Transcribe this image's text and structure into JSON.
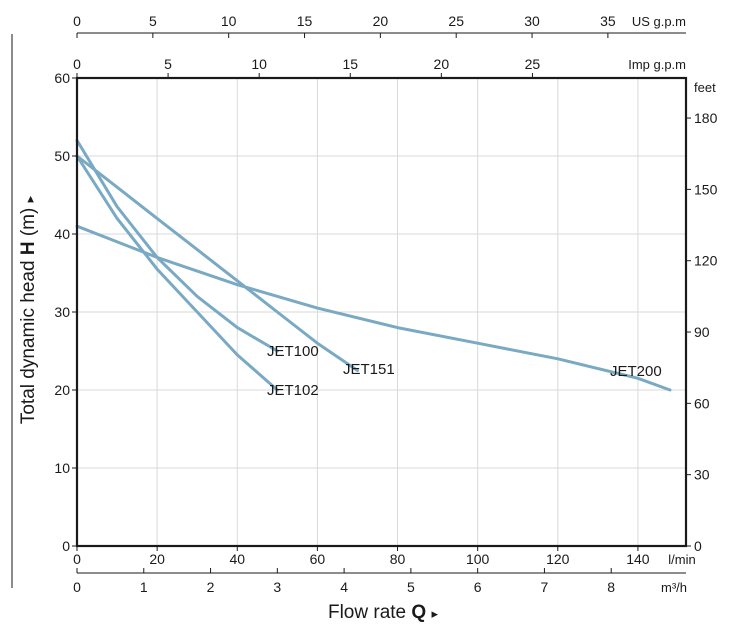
{
  "chart_data": {
    "type": "line",
    "ylabel": {
      "prefix": "Total dynamic head ",
      "bold": "H",
      "suffix": " (m) ",
      "arrow": "▸"
    },
    "xlabel": {
      "prefix": "Flow rate ",
      "bold": "Q",
      "suffix": " ",
      "arrow": "▸"
    },
    "axes": {
      "lmin": {
        "unit": "l/min",
        "range": [
          0,
          152
        ],
        "ticks": [
          0,
          20,
          40,
          60,
          80,
          100,
          120,
          140
        ]
      },
      "m3h": {
        "unit": "m³/h",
        "range": [
          0,
          9.12
        ],
        "ticks": [
          0,
          1,
          2,
          3,
          4,
          5,
          6,
          7,
          8
        ]
      },
      "usgpm": {
        "unit": "US g.p.m",
        "range": [
          0,
          40.15
        ],
        "ticks": [
          0,
          5,
          10,
          15,
          20,
          25,
          30,
          35
        ]
      },
      "impgpm": {
        "unit": "Imp g.p.m",
        "range": [
          0,
          33.43
        ],
        "ticks": [
          0,
          5,
          10,
          15,
          20,
          25
        ]
      },
      "head_m": {
        "unit": "m",
        "range": [
          0,
          60
        ],
        "ticks": [
          0,
          10,
          20,
          30,
          40,
          50,
          60
        ]
      },
      "head_ft": {
        "unit": "feet",
        "range": [
          0,
          196.85
        ],
        "ticks": [
          0,
          30,
          60,
          90,
          120,
          150,
          180
        ]
      }
    },
    "grid": true,
    "series": [
      {
        "name": "JET100",
        "x_lmin": [
          0,
          10,
          20,
          30,
          40,
          50
        ],
        "y_m": [
          52,
          43.5,
          37,
          32,
          28,
          25
        ]
      },
      {
        "name": "JET102",
        "x_lmin": [
          0,
          10,
          20,
          30,
          40,
          50
        ],
        "y_m": [
          50,
          42,
          35.5,
          30,
          24.5,
          20
        ]
      },
      {
        "name": "JET151",
        "x_lmin": [
          0,
          10,
          20,
          30,
          40,
          50,
          60,
          70
        ],
        "y_m": [
          50,
          46,
          42,
          38,
          34,
          30,
          26,
          22.5
        ]
      },
      {
        "name": "JET200",
        "x_lmin": [
          0,
          20,
          40,
          60,
          80,
          100,
          120,
          140,
          148
        ],
        "y_m": [
          41,
          37,
          33.5,
          30.5,
          28,
          26,
          24,
          21.5,
          20
        ]
      }
    ]
  }
}
